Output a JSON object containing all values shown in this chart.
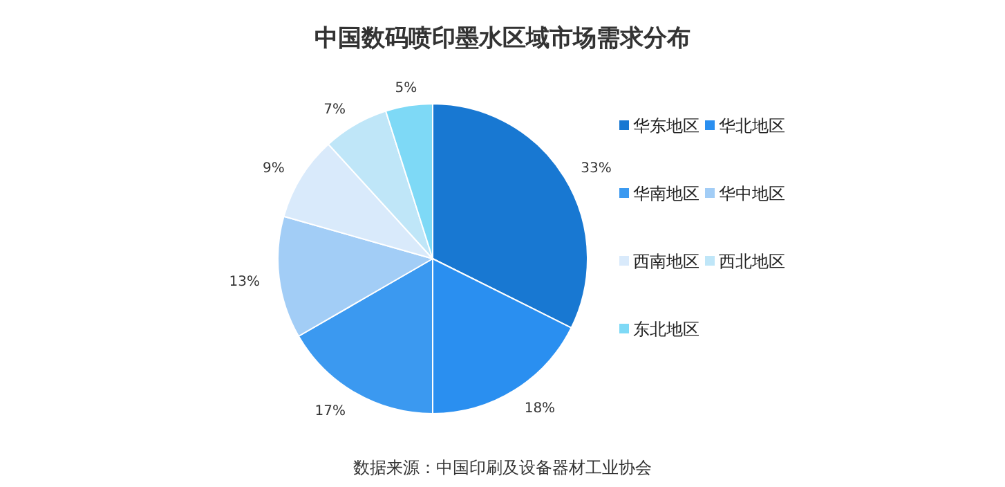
{
  "chart_data": {
    "type": "pie",
    "title": "中国数码喷印墨水区域市场需求分布",
    "categories": [
      "华东地区",
      "华北地区",
      "华南地区",
      "华中地区",
      "西南地区",
      "西北地区",
      "东北地区"
    ],
    "values": [
      33,
      18,
      17,
      13,
      9,
      7,
      5
    ],
    "value_labels": [
      "33%",
      "18%",
      "17%",
      "13%",
      "9%",
      "7%",
      "5%"
    ],
    "colors": [
      "#1878d2",
      "#2a8ff0",
      "#3b99f0",
      "#a2cdf6",
      "#d9eafb",
      "#bfe6f8",
      "#7ed9f6"
    ],
    "legend": "right",
    "annotations": [
      "数据来源：中国印刷及设备器材工业协会"
    ]
  }
}
